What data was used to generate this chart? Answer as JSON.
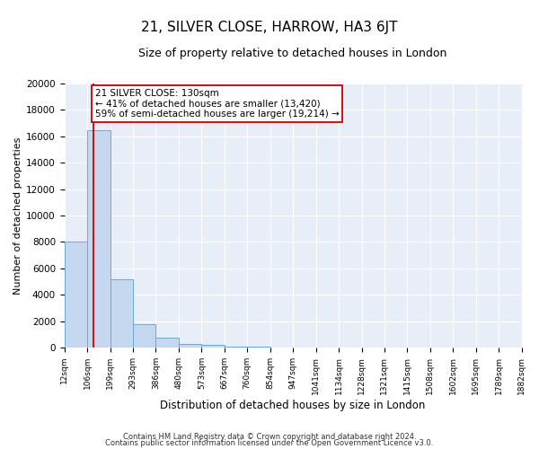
{
  "title": "21, SILVER CLOSE, HARROW, HA3 6JT",
  "subtitle": "Size of property relative to detached houses in London",
  "xlabel": "Distribution of detached houses by size in London",
  "ylabel": "Number of detached properties",
  "bar_color": "#c5d8f0",
  "bar_edge_color": "#6aaad4",
  "fig_bg_color": "#ffffff",
  "plot_bg_color": "#e8eef8",
  "grid_color": "#ffffff",
  "bin_edges": [
    12,
    106,
    199,
    293,
    386,
    480,
    573,
    667,
    760,
    854,
    947,
    1041,
    1134,
    1228,
    1321,
    1415,
    1508,
    1602,
    1695,
    1789,
    1882
  ],
  "bar_heights": [
    8000,
    16500,
    5200,
    1750,
    750,
    300,
    200,
    100,
    100,
    0,
    0,
    0,
    0,
    0,
    0,
    0,
    0,
    0,
    0,
    0
  ],
  "property_size": 130,
  "property_line_color": "#cc0000",
  "annotation_line1": "21 SILVER CLOSE: 130sqm",
  "annotation_line2": "← 41% of detached houses are smaller (13,420)",
  "annotation_line3": "59% of semi-detached houses are larger (19,214) →",
  "annotation_box_color": "#ffffff",
  "annotation_border_color": "#cc0000",
  "ylim": [
    0,
    20000
  ],
  "yticks": [
    0,
    2000,
    4000,
    6000,
    8000,
    10000,
    12000,
    14000,
    16000,
    18000,
    20000
  ],
  "tick_labels": [
    "12sqm",
    "106sqm",
    "199sqm",
    "293sqm",
    "386sqm",
    "480sqm",
    "573sqm",
    "667sqm",
    "760sqm",
    "854sqm",
    "947sqm",
    "1041sqm",
    "1134sqm",
    "1228sqm",
    "1321sqm",
    "1415sqm",
    "1508sqm",
    "1602sqm",
    "1695sqm",
    "1789sqm",
    "1882sqm"
  ],
  "footer_line1": "Contains HM Land Registry data © Crown copyright and database right 2024.",
  "footer_line2": "Contains public sector information licensed under the Open Government Licence v3.0."
}
